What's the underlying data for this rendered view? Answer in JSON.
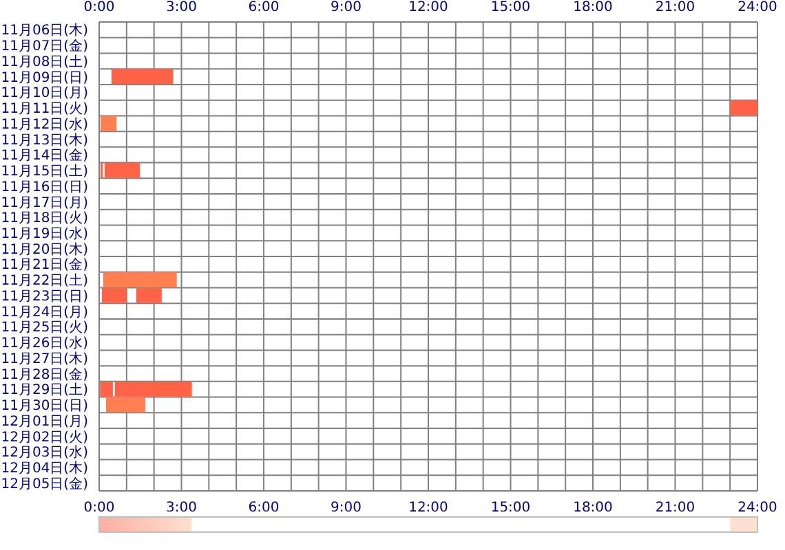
{
  "chart_data": {
    "type": "bar",
    "orientation": "horizontal",
    "categories": [
      "11月06日(木)",
      "11月07日(金)",
      "11月08日(土)",
      "11月09日(日)",
      "11月10日(月)",
      "11月11日(火)",
      "11月12日(水)",
      "11月13日(木)",
      "11月14日(金)",
      "11月15日(土)",
      "11月16日(日)",
      "11月17日(月)",
      "11月18日(火)",
      "11月19日(水)",
      "11月20日(木)",
      "11月21日(金)",
      "11月22日(土)",
      "11月23日(日)",
      "11月24日(月)",
      "11月25日(火)",
      "11月26日(水)",
      "11月27日(木)",
      "11月28日(金)",
      "11月29日(土)",
      "11月30日(日)",
      "12月01日(月)",
      "12月02日(火)",
      "12月03日(水)",
      "12月04日(木)",
      "12月05日(金)"
    ],
    "series": [
      {
        "base": [
          null,
          null,
          null,
          0.45,
          null,
          23,
          0.05,
          null,
          null,
          0.05,
          null,
          null,
          null,
          null,
          null,
          null,
          0.15,
          0.1,
          null,
          null,
          null,
          null,
          null,
          0.03,
          0.25,
          null,
          null,
          null,
          null,
          null
        ],
        "values": [
          null,
          null,
          null,
          2.25,
          null,
          1,
          0.58,
          null,
          null,
          0.08,
          null,
          null,
          null,
          null,
          null,
          null,
          2.68,
          0.9,
          null,
          null,
          null,
          null,
          null,
          0.47,
          1.43,
          null,
          null,
          null,
          null,
          null
        ],
        "colors": [
          null,
          null,
          null,
          "#ff6347",
          null,
          "#ff6347",
          "#ff7f50",
          null,
          null,
          "#ff6347",
          null,
          null,
          null,
          null,
          null,
          null,
          "#ff7f50",
          "#ff6347",
          null,
          null,
          null,
          null,
          null,
          "#ff6347",
          "#ff7f50",
          null,
          null,
          null,
          null,
          null
        ]
      },
      {
        "base": [
          null,
          null,
          null,
          null,
          null,
          null,
          null,
          null,
          null,
          0.2,
          null,
          null,
          null,
          null,
          null,
          null,
          null,
          1.35,
          null,
          null,
          null,
          null,
          null,
          0.57,
          null,
          null,
          null,
          null,
          null,
          null
        ],
        "values": [
          null,
          null,
          null,
          null,
          null,
          null,
          null,
          null,
          null,
          1.28,
          null,
          null,
          null,
          null,
          null,
          null,
          null,
          0.93,
          null,
          null,
          null,
          null,
          null,
          2.81,
          null,
          null,
          null,
          null,
          null,
          null
        ],
        "colors": [
          null,
          null,
          null,
          null,
          null,
          null,
          null,
          null,
          null,
          "#ff6347",
          null,
          null,
          null,
          null,
          null,
          null,
          null,
          "#ff6347",
          null,
          null,
          null,
          null,
          null,
          "#ff6347",
          null,
          null,
          null,
          null,
          null,
          null
        ]
      }
    ],
    "xlim": [
      0,
      24
    ],
    "xticks": [
      {
        "value": 0,
        "label": "0:00"
      },
      {
        "value": 1,
        "label": null
      },
      {
        "value": 2,
        "label": null
      },
      {
        "value": 3,
        "label": "3:00"
      },
      {
        "value": 4,
        "label": null
      },
      {
        "value": 5,
        "label": null
      },
      {
        "value": 6,
        "label": "6:00"
      },
      {
        "value": 7,
        "label": null
      },
      {
        "value": 8,
        "label": null
      },
      {
        "value": 9,
        "label": "9:00"
      },
      {
        "value": 10,
        "label": null
      },
      {
        "value": 11,
        "label": null
      },
      {
        "value": 12,
        "label": "12:00"
      },
      {
        "value": 13,
        "label": null
      },
      {
        "value": 14,
        "label": null
      },
      {
        "value": 15,
        "label": "15:00"
      },
      {
        "value": 16,
        "label": null
      },
      {
        "value": 17,
        "label": null
      },
      {
        "value": 18,
        "label": "18:00"
      },
      {
        "value": 19,
        "label": null
      },
      {
        "value": 20,
        "label": null
      },
      {
        "value": 21,
        "label": "21:00"
      },
      {
        "value": 22,
        "label": null
      },
      {
        "value": 23,
        "label": null
      },
      {
        "value": 24,
        "label": "24:00"
      }
    ],
    "x2lim": [
      0,
      24
    ],
    "x2ticks": [
      {
        "value": 0,
        "label": "0:00"
      },
      {
        "value": 1,
        "label": null
      },
      {
        "value": 2,
        "label": null
      },
      {
        "value": 3,
        "label": "3:00"
      },
      {
        "value": 4,
        "label": null
      },
      {
        "value": 5,
        "label": null
      },
      {
        "value": 6,
        "label": "6:00"
      },
      {
        "value": 7,
        "label": null
      },
      {
        "value": 8,
        "label": null
      },
      {
        "value": 9,
        "label": "9:00"
      },
      {
        "value": 10,
        "label": null
      },
      {
        "value": 11,
        "label": null
      },
      {
        "value": 12,
        "label": "12:00"
      },
      {
        "value": 13,
        "label": null
      },
      {
        "value": 14,
        "label": null
      },
      {
        "value": 15,
        "label": "15:00"
      },
      {
        "value": 16,
        "label": null
      },
      {
        "value": 17,
        "label": null
      },
      {
        "value": 18,
        "label": "18:00"
      },
      {
        "value": 19,
        "label": null
      },
      {
        "value": 20,
        "label": null
      },
      {
        "value": 21,
        "label": "21:00"
      },
      {
        "value": 22,
        "label": null
      },
      {
        "value": 23,
        "label": null
      },
      {
        "value": 24,
        "label": "24:00"
      }
    ],
    "grid": true
  }
}
